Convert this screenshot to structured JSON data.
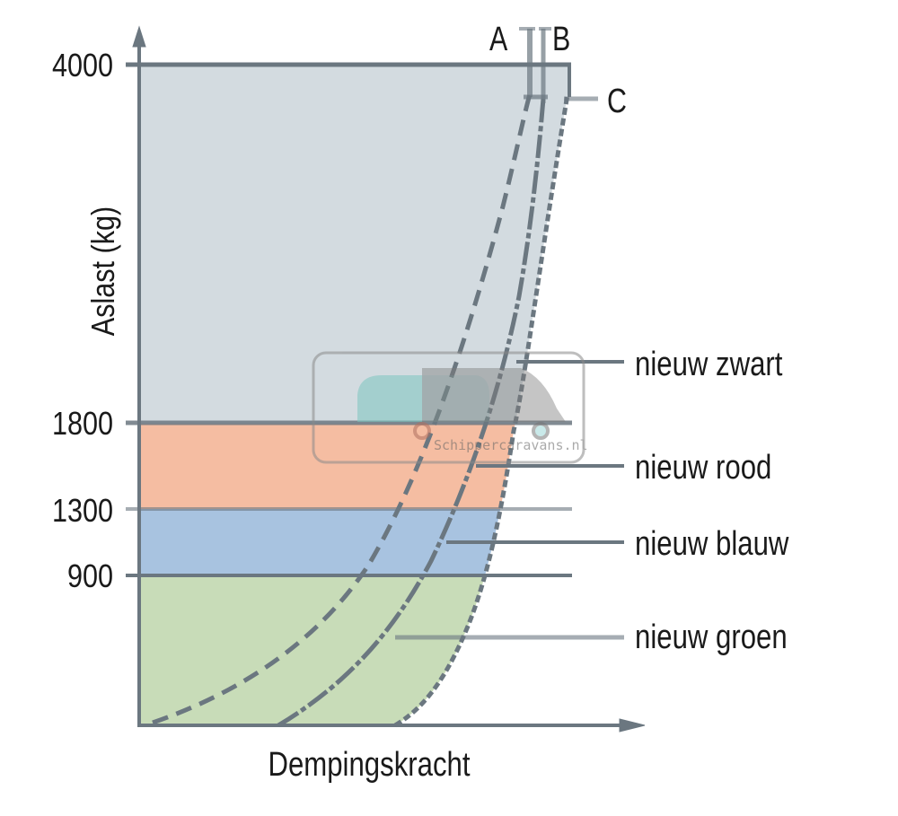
{
  "y_axis": {
    "title": "Aslast (kg)",
    "ticks": [
      "4000",
      "1800",
      "1300",
      "900"
    ]
  },
  "x_axis": {
    "title": "Dempingskracht"
  },
  "curve_labels": [
    "A",
    "B",
    "C"
  ],
  "bands": [
    {
      "name": "nieuw zwart",
      "range_kg": [
        1800,
        4000
      ],
      "color": "#d3dbe0"
    },
    {
      "name": "nieuw rood",
      "range_kg": [
        1300,
        1800
      ],
      "color": "#f5bda2"
    },
    {
      "name": "nieuw blauw",
      "range_kg": [
        900,
        1300
      ],
      "color": "#a8c3e0"
    },
    {
      "name": "nieuw groen",
      "range_kg": [
        0,
        900
      ],
      "color": "#c8dcb8"
    }
  ],
  "line_color": "#6b7780",
  "watermark": {
    "text": "Schippercaravans.nl"
  }
}
